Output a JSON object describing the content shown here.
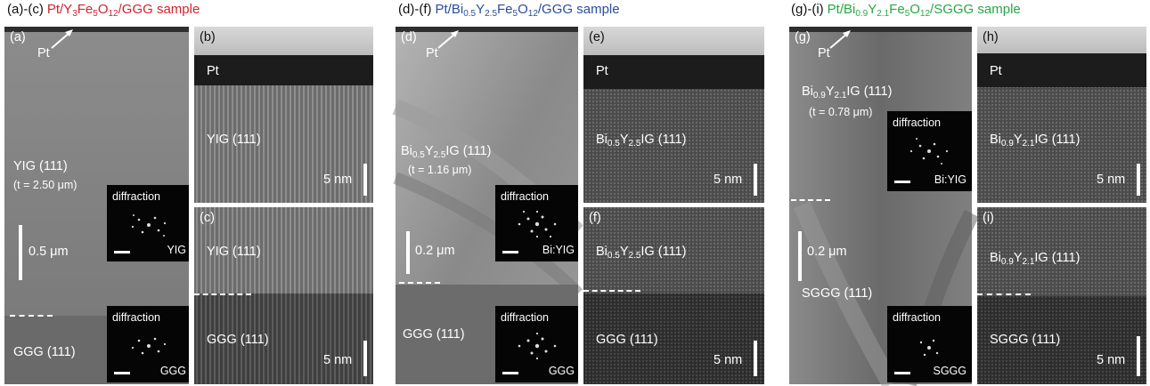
{
  "groups": [
    {
      "prefix": "(a)-(c)",
      "sample": "Pt/Y3Fe5O12/GGG sample",
      "color": "#d0242f"
    },
    {
      "prefix": "(d)-(f)",
      "sample": "Pt/Bi0.5Y2.5Fe5O12/GGG sample",
      "color": "#2a4e9c"
    },
    {
      "prefix": "(g)-(i)",
      "sample": "Pt/Bi0.9Y2.1Fe5O12/SGGG sample",
      "color": "#27a844"
    }
  ],
  "panels": {
    "a": {
      "letter": "(a)",
      "pt": "Pt",
      "film": "YIG (111)",
      "thickness": "(t = 2.50 μm)",
      "scale": "0.5 μm",
      "inset_film": {
        "title": "diffraction",
        "tag": "YIG"
      },
      "substrate": "GGG (111)",
      "inset_sub": {
        "title": "diffraction",
        "tag": "GGG"
      }
    },
    "b": {
      "letter": "(b)",
      "pt": "Pt",
      "film": "YIG (111)",
      "scale": "5 nm"
    },
    "c": {
      "letter": "(c)",
      "film": "YIG (111)",
      "substrate": "GGG (111)",
      "scale": "5 nm"
    },
    "d": {
      "letter": "(d)",
      "pt": "Pt",
      "film": "Bi0.5Y2.5IG (111)",
      "thickness": "(t = 1.16 μm)",
      "scale": "0.2 μm",
      "inset_film": {
        "title": "diffraction",
        "tag": "Bi:YIG"
      },
      "substrate": "GGG (111)",
      "inset_sub": {
        "title": "diffraction",
        "tag": "GGG"
      }
    },
    "e": {
      "letter": "(e)",
      "pt": "Pt",
      "film": "Bi0.5Y2.5IG (111)",
      "scale": "5 nm"
    },
    "f": {
      "letter": "(f)",
      "film": "Bi0.5Y2.5IG (111)",
      "substrate": "GGG (111)",
      "scale": "5 nm"
    },
    "g": {
      "letter": "(g)",
      "pt": "Pt",
      "film": "Bi0.9Y2.1IG (111)",
      "thickness": "(t = 0.78 μm)",
      "scale": "0.2 μm",
      "inset_film": {
        "title": "diffraction",
        "tag": "Bi:YIG"
      },
      "substrate": "SGGG (111)",
      "inset_sub": {
        "title": "diffraction",
        "tag": "SGGG"
      }
    },
    "h": {
      "letter": "(h)",
      "pt": "Pt",
      "film": "Bi0.9Y2.1IG (111)",
      "scale": "5 nm"
    },
    "i": {
      "letter": "(i)",
      "film": "Bi0.9Y2.1IG (111)",
      "substrate": "SGGG (111)",
      "scale": "5 nm"
    }
  }
}
